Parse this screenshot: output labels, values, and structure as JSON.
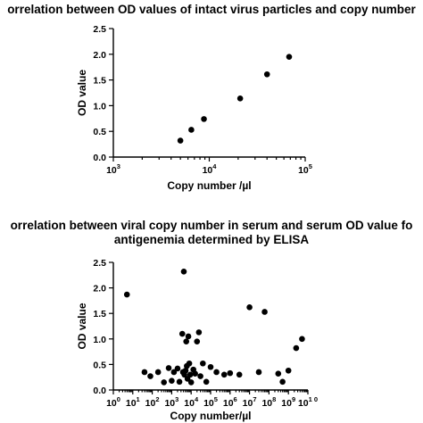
{
  "chart_data": [
    {
      "type": "scatter",
      "title": "orrelation between OD values of intact virus particles and copy number",
      "title_lines": [
        "orrelation between OD values of intact virus particles and copy number"
      ],
      "xlabel": "Copy number /µl",
      "ylabel": "OD value",
      "xscale": "log",
      "xlim": [
        1000,
        100000
      ],
      "ylim": [
        0,
        2.5
      ],
      "xtick_labels": [
        {
          "base": "10",
          "exp": "3"
        },
        {
          "base": "10",
          "exp": "4"
        },
        {
          "base": "10",
          "exp": "5"
        }
      ],
      "ytick_labels": [
        "0.0",
        "0.5",
        "1.0",
        "1.5",
        "2.0",
        "2.5"
      ],
      "grid": false,
      "point_color": "#000000",
      "points": [
        {
          "x": 5000,
          "y": 0.32
        },
        {
          "x": 6500,
          "y": 0.53
        },
        {
          "x": 8800,
          "y": 0.74
        },
        {
          "x": 21000,
          "y": 1.14
        },
        {
          "x": 40000,
          "y": 1.61
        },
        {
          "x": 68000,
          "y": 1.95
        }
      ]
    },
    {
      "type": "scatter",
      "title": "orrelation between viral copy number in serum and serum OD value fo antigenemia determined by ELISA",
      "title_lines": [
        "orrelation between viral copy number in serum and serum OD value fo",
        "antigenemia determined by ELISA"
      ],
      "xlabel": "Copy number/µl",
      "ylabel": "OD value",
      "xscale": "log",
      "xlim": [
        1,
        10000000000
      ],
      "ylim": [
        0,
        2.5
      ],
      "xtick_labels": [
        {
          "base": "10",
          "exp": "0"
        },
        {
          "base": "10",
          "exp": "1"
        },
        {
          "base": "10",
          "exp": "2"
        },
        {
          "base": "10",
          "exp": "3"
        },
        {
          "base": "10",
          "exp": "4"
        },
        {
          "base": "10",
          "exp": "5"
        },
        {
          "base": "10",
          "exp": "6"
        },
        {
          "base": "10",
          "exp": "7"
        },
        {
          "base": "10",
          "exp": "8"
        },
        {
          "base": "10",
          "exp": "9"
        },
        {
          "base": "10",
          "exp": "1 0"
        }
      ],
      "ytick_labels": [
        "0.0",
        "0.5",
        "1.0",
        "1.5",
        "2.0",
        "2.5"
      ],
      "grid": false,
      "point_color": "#000000",
      "points": [
        {
          "x": 5,
          "y": 1.87
        },
        {
          "x": 40,
          "y": 0.35
        },
        {
          "x": 80,
          "y": 0.27
        },
        {
          "x": 200,
          "y": 0.35
        },
        {
          "x": 400,
          "y": 0.15
        },
        {
          "x": 700,
          "y": 0.43
        },
        {
          "x": 1000,
          "y": 0.18
        },
        {
          "x": 1300,
          "y": 0.35
        },
        {
          "x": 2000,
          "y": 0.42
        },
        {
          "x": 2500,
          "y": 0.16
        },
        {
          "x": 3500,
          "y": 1.1
        },
        {
          "x": 3800,
          "y": 0.35
        },
        {
          "x": 4200,
          "y": 2.32
        },
        {
          "x": 4500,
          "y": 0.3
        },
        {
          "x": 5200,
          "y": 0.38
        },
        {
          "x": 5600,
          "y": 0.95
        },
        {
          "x": 6000,
          "y": 0.47
        },
        {
          "x": 6500,
          "y": 0.22
        },
        {
          "x": 7200,
          "y": 1.05
        },
        {
          "x": 8000,
          "y": 0.52
        },
        {
          "x": 9000,
          "y": 0.3
        },
        {
          "x": 10000,
          "y": 0.15
        },
        {
          "x": 13000,
          "y": 0.4
        },
        {
          "x": 16000,
          "y": 0.32
        },
        {
          "x": 20000,
          "y": 0.95
        },
        {
          "x": 25000,
          "y": 1.13
        },
        {
          "x": 30000,
          "y": 0.27
        },
        {
          "x": 40000,
          "y": 0.52
        },
        {
          "x": 60000,
          "y": 0.16
        },
        {
          "x": 100000,
          "y": 0.45
        },
        {
          "x": 200000,
          "y": 0.35
        },
        {
          "x": 500000,
          "y": 0.3
        },
        {
          "x": 1000000,
          "y": 0.33
        },
        {
          "x": 3000000,
          "y": 0.3
        },
        {
          "x": 10000000,
          "y": 1.62
        },
        {
          "x": 30000000,
          "y": 0.35
        },
        {
          "x": 60000000,
          "y": 1.53
        },
        {
          "x": 300000000,
          "y": 0.32
        },
        {
          "x": 500000000,
          "y": 0.16
        },
        {
          "x": 1000000000,
          "y": 0.38
        },
        {
          "x": 2500000000,
          "y": 0.82
        },
        {
          "x": 5000000000,
          "y": 1.0
        }
      ]
    }
  ]
}
